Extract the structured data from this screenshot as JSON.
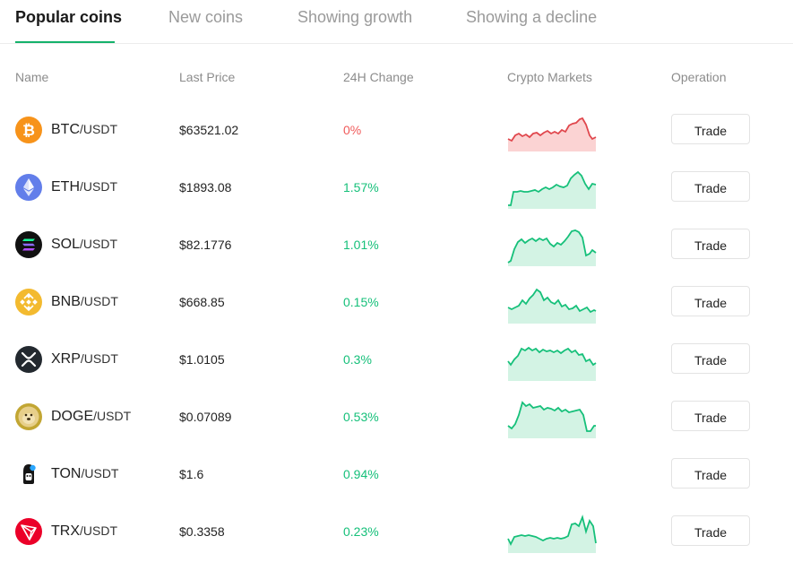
{
  "tabs": [
    {
      "label": "Popular coins",
      "active": true
    },
    {
      "label": "New coins",
      "active": false
    },
    {
      "label": "Showing growth",
      "active": false
    },
    {
      "label": "Showing a decline",
      "active": false
    }
  ],
  "table": {
    "columns": {
      "name": "Name",
      "last_price": "Last Price",
      "change": "24H Change",
      "markets": "Crypto Markets",
      "operation": "Operation"
    },
    "rows": [
      {
        "base": "BTC",
        "quote": "/USDT",
        "price": "$63521.02",
        "change": "0%",
        "trend": "flat",
        "icon": "bitcoin-icon",
        "button": "Trade"
      },
      {
        "base": "ETH",
        "quote": "/USDT",
        "price": "$1893.08",
        "change": "1.57%",
        "trend": "up",
        "icon": "ethereum-icon",
        "button": "Trade"
      },
      {
        "base": "SOL",
        "quote": "/USDT",
        "price": "$82.1776",
        "change": "1.01%",
        "trend": "up",
        "icon": "solana-icon",
        "button": "Trade"
      },
      {
        "base": "BNB",
        "quote": "/USDT",
        "price": "$668.85",
        "change": "0.15%",
        "trend": "up",
        "icon": "bnb-icon",
        "button": "Trade"
      },
      {
        "base": "XRP",
        "quote": "/USDT",
        "price": "$1.0105",
        "change": "0.3%",
        "trend": "up",
        "icon": "xrp-icon",
        "button": "Trade"
      },
      {
        "base": "DOGE",
        "quote": "/USDT",
        "price": "$0.07089",
        "change": "0.53%",
        "trend": "up",
        "icon": "dogecoin-icon",
        "button": "Trade"
      },
      {
        "base": "TON",
        "quote": "/USDT",
        "price": "$1.6",
        "change": "0.94%",
        "trend": "up",
        "icon": "ton-icon",
        "button": "Trade"
      },
      {
        "base": "TRX",
        "quote": "/USDT",
        "price": "$0.3358",
        "change": "0.23%",
        "trend": "up",
        "icon": "tron-icon",
        "button": "Trade"
      }
    ]
  },
  "colors": {
    "accent": "#15b26b",
    "up": "#16c07a",
    "down": "#f05a5a",
    "up_fill": "#d3f3e4",
    "down_fill": "#fbd3d3"
  }
}
